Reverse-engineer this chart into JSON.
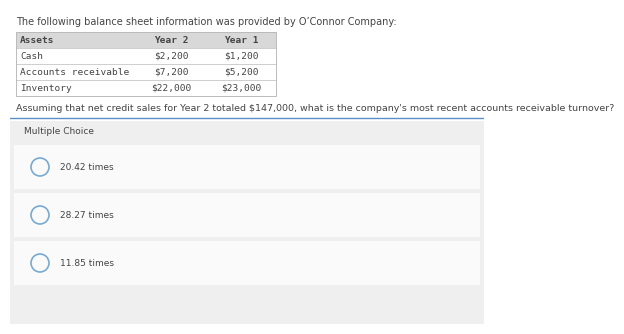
{
  "title_text": "The following balance sheet information was provided by O’Connor Company:",
  "table_header": [
    "Assets",
    "Year 2",
    "Year 1"
  ],
  "table_rows": [
    [
      "Cash",
      "$2,200",
      "$1,200"
    ],
    [
      "Accounts receivable",
      "$7,200",
      "$5,200"
    ],
    [
      "Inventory",
      "$22,000",
      "$23,000"
    ]
  ],
  "question_text": "Assuming that net credit sales for Year 2 totaled $147,000, what is the company's most recent accounts receivable turnover?",
  "section_label": "Multiple Choice",
  "choices": [
    "20.42 times",
    "28.27 times",
    "11.85 times"
  ],
  "white": "#ffffff",
  "table_header_bg": "#d8d8d8",
  "table_border_color": "#bbbbbb",
  "question_underline_color": "#5b8fc9",
  "text_color": "#444444",
  "mc_bg_color": "#efefef",
  "choice_bg": "#fafafa",
  "circle_color": "#7aaad0",
  "title_fontsize": 7.0,
  "table_fontsize": 6.8,
  "question_fontsize": 6.8,
  "choice_fontsize": 6.5,
  "section_fontsize": 6.5
}
